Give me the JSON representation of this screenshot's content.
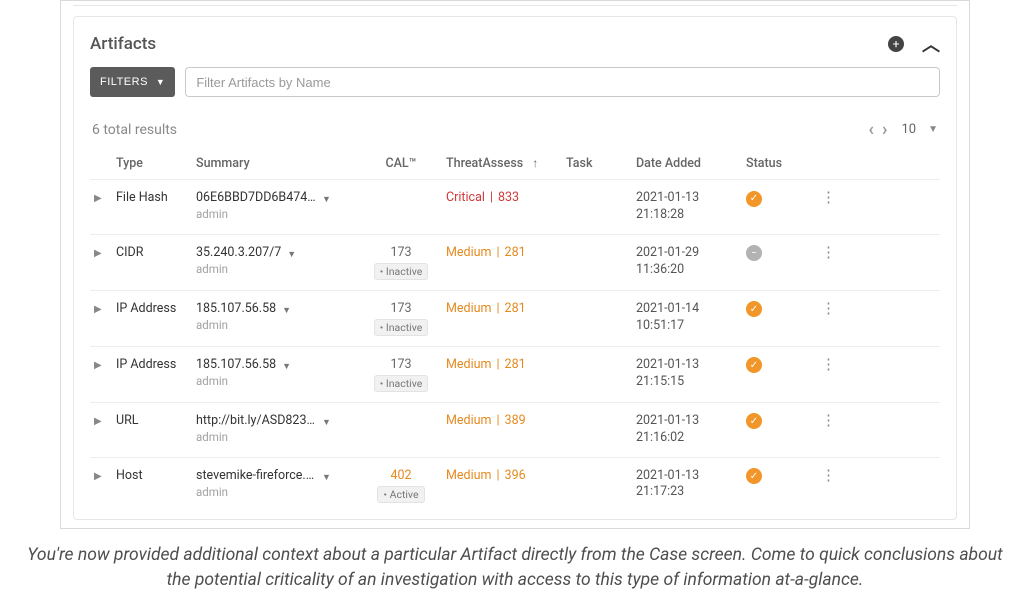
{
  "panel": {
    "title": "Artifacts",
    "filters_button": "FILTERS",
    "filter_placeholder": "Filter Artifacts by Name",
    "results_text": "6 total results",
    "page_size": "10"
  },
  "columns": {
    "type": "Type",
    "summary": "Summary",
    "cal": "CAL™",
    "threat": "ThreatAssess",
    "task": "Task",
    "date": "Date Added",
    "status": "Status"
  },
  "rows": [
    {
      "type": "File Hash",
      "summary": "06E6BBD7DD6B474...",
      "summary_sub": "admin",
      "cal_num": "",
      "cal_badge": "",
      "threat_level": "Critical",
      "threat_score": "833",
      "threat_class": "critical",
      "date_line1": "2021-01-13",
      "date_line2": "21:18:28",
      "status": "ok"
    },
    {
      "type": "CIDR",
      "summary": "35.240.3.207/7",
      "summary_sub": "admin",
      "cal_num": "173",
      "cal_badge": "• Inactive",
      "threat_level": "Medium",
      "threat_score": "281",
      "threat_class": "medium",
      "date_line1": "2021-01-29",
      "date_line2": "11:36:20",
      "status": "neutral"
    },
    {
      "type": "IP Address",
      "summary": "185.107.56.58",
      "summary_sub": "admin",
      "cal_num": "173",
      "cal_badge": "• Inactive",
      "threat_level": "Medium",
      "threat_score": "281",
      "threat_class": "medium",
      "date_line1": "2021-01-14",
      "date_line2": "10:51:17",
      "status": "ok"
    },
    {
      "type": "IP Address",
      "summary": "185.107.56.58",
      "summary_sub": "admin",
      "cal_num": "173",
      "cal_badge": "• Inactive",
      "threat_level": "Medium",
      "threat_score": "281",
      "threat_class": "medium",
      "date_line1": "2021-01-13",
      "date_line2": "21:15:15",
      "status": "ok"
    },
    {
      "type": "URL",
      "summary": "http://bit.ly/ASD823...",
      "summary_sub": "admin",
      "cal_num": "",
      "cal_badge": "",
      "threat_level": "Medium",
      "threat_score": "389",
      "threat_class": "medium",
      "date_line1": "2021-01-13",
      "date_line2": "21:16:02",
      "status": "ok"
    },
    {
      "type": "Host",
      "summary": "stevemike-fireforce.i...",
      "summary_sub": "admin",
      "cal_num": "402",
      "cal_num_class": "orange",
      "cal_badge": "• Active",
      "threat_level": "Medium",
      "threat_score": "396",
      "threat_class": "medium",
      "date_line1": "2021-01-13",
      "date_line2": "21:17:23",
      "status": "ok"
    }
  ],
  "caption": "You're now provided additional context about a particular Artifact directly from the Case screen. Come to quick conclusions about the potential criticality of an investigation with access to this type of information at-a-glance."
}
